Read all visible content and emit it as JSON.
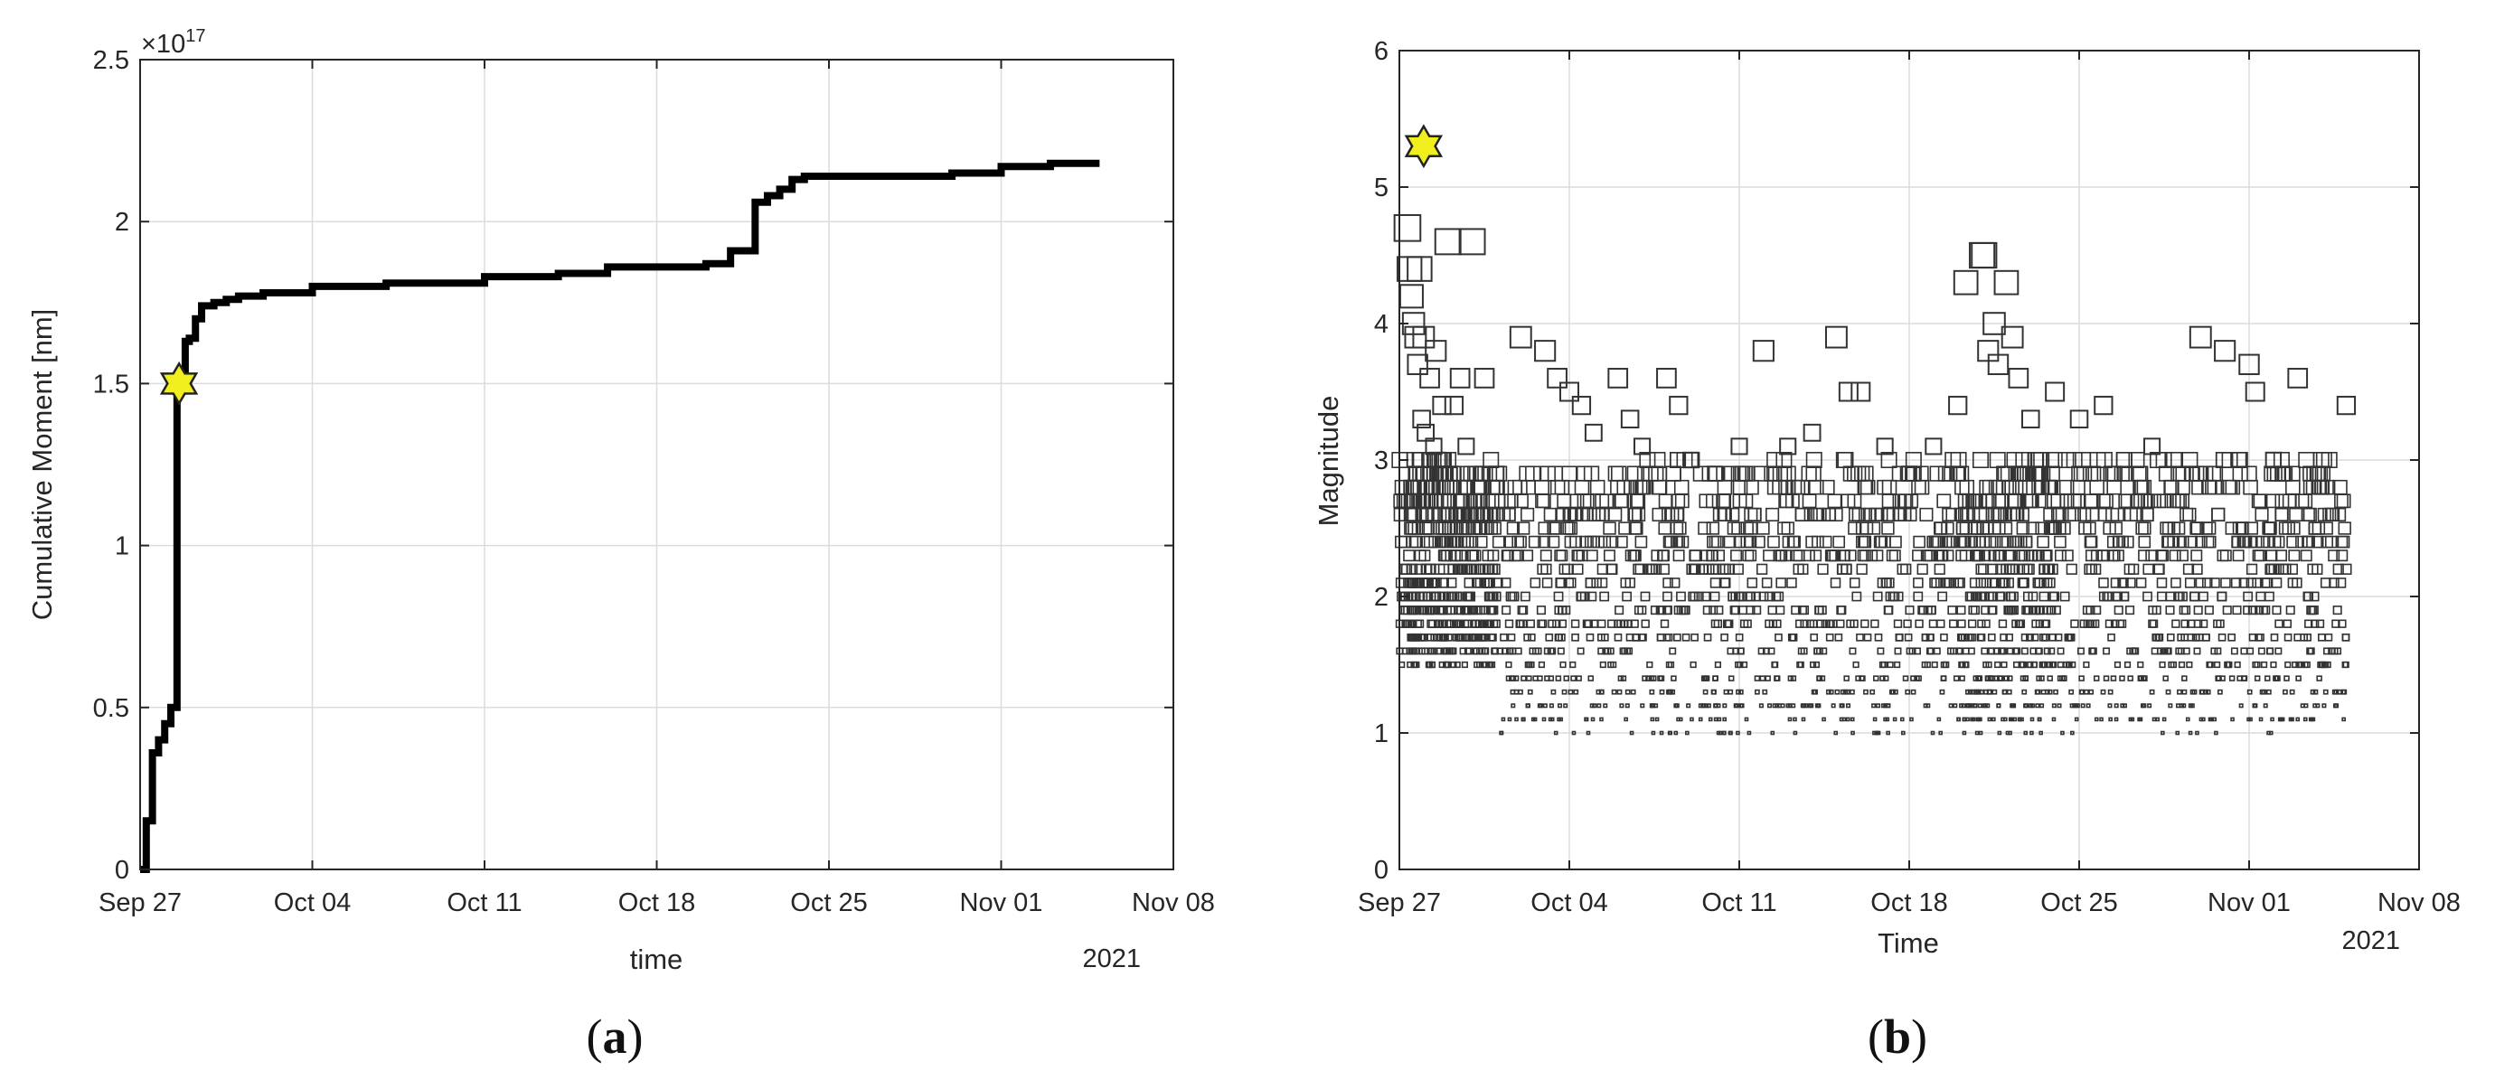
{
  "chart_data": [
    {
      "panel_label": "a",
      "type": "line",
      "xlabel": "time",
      "ylabel": "Cumulative Moment [nm]",
      "y_multiplier": "×10",
      "y_multiplier_exp": "17",
      "year_label": "2021",
      "x_ticks": [
        {
          "date": "2021-09-27",
          "label": "Sep 27"
        },
        {
          "date": "2021-10-04",
          "label": "Oct 04"
        },
        {
          "date": "2021-10-11",
          "label": "Oct 11"
        },
        {
          "date": "2021-10-18",
          "label": "Oct 18"
        },
        {
          "date": "2021-10-25",
          "label": "Oct 25"
        },
        {
          "date": "2021-11-01",
          "label": "Nov 01"
        },
        {
          "date": "2021-11-08",
          "label": "Nov 08"
        }
      ],
      "y_ticks": [
        {
          "value": 0,
          "label": "0"
        },
        {
          "value": 0.5,
          "label": "0.5"
        },
        {
          "value": 1,
          "label": "1"
        },
        {
          "value": 1.5,
          "label": "1.5"
        },
        {
          "value": 2,
          "label": "2"
        },
        {
          "value": 2.5,
          "label": "2.5"
        }
      ],
      "xlim": [
        "2021-09-27",
        "2021-11-08"
      ],
      "ylim": [
        0,
        2.5
      ],
      "grid": true,
      "line_color": "#000000",
      "series": [
        {
          "x": [
            "2021-09-27",
            "2021-09-27T06",
            "2021-09-27T12",
            "2021-09-27T18",
            "2021-09-28",
            "2021-09-28T06",
            "2021-09-28T12",
            "2021-09-28T14",
            "2021-09-28T20",
            "2021-09-29",
            "2021-09-29T06",
            "2021-09-29T12",
            "2021-09-30",
            "2021-09-30T12",
            "2021-10-01",
            "2021-10-02",
            "2021-10-04",
            "2021-10-07",
            "2021-10-11",
            "2021-10-14",
            "2021-10-16",
            "2021-10-18",
            "2021-10-20",
            "2021-10-21",
            "2021-10-21T12",
            "2021-10-22",
            "2021-10-22T12",
            "2021-10-23",
            "2021-10-23T12",
            "2021-10-24",
            "2021-10-27",
            "2021-10-30",
            "2021-11-01",
            "2021-11-03",
            "2021-11-05"
          ],
          "y": [
            0.0,
            0.15,
            0.36,
            0.4,
            0.45,
            0.5,
            1.5,
            1.5,
            1.63,
            1.64,
            1.7,
            1.74,
            1.75,
            1.76,
            1.77,
            1.78,
            1.8,
            1.81,
            1.83,
            1.84,
            1.86,
            1.86,
            1.87,
            1.91,
            1.91,
            2.06,
            2.08,
            2.1,
            2.13,
            2.14,
            2.14,
            2.15,
            2.17,
            2.18,
            2.18
          ]
        }
      ],
      "star": {
        "date": "2021-09-28T14",
        "value": 1.5,
        "color": "#f0ee1d"
      }
    },
    {
      "panel_label": "b",
      "type": "scatter",
      "xlabel": "Time",
      "ylabel": "Magnitude",
      "year_label": "2021",
      "x_ticks": [
        {
          "date": "2021-09-27",
          "label": "Sep 27"
        },
        {
          "date": "2021-10-04",
          "label": "Oct 04"
        },
        {
          "date": "2021-10-11",
          "label": "Oct 11"
        },
        {
          "date": "2021-10-18",
          "label": "Oct 18"
        },
        {
          "date": "2021-10-25",
          "label": "Oct 25"
        },
        {
          "date": "2021-11-01",
          "label": "Nov 01"
        },
        {
          "date": "2021-11-08",
          "label": "Nov 08"
        }
      ],
      "y_ticks": [
        {
          "value": 0,
          "label": "0"
        },
        {
          "value": 1,
          "label": "1"
        },
        {
          "value": 2,
          "label": "2"
        },
        {
          "value": 3,
          "label": "3"
        },
        {
          "value": 4,
          "label": "4"
        },
        {
          "value": 5,
          "label": "5"
        },
        {
          "value": 6,
          "label": "6"
        }
      ],
      "xlim": [
        "2021-09-27",
        "2021-11-08"
      ],
      "ylim": [
        0,
        6
      ],
      "grid": true,
      "marker": "square-open",
      "marker_size_encodes": "magnitude",
      "points": [
        {
          "date": "2021-09-27T08",
          "mag": 4.7
        },
        {
          "date": "2021-09-27T10",
          "mag": 4.4
        },
        {
          "date": "2021-09-27T20",
          "mag": 4.4
        },
        {
          "date": "2021-09-29",
          "mag": 4.6
        },
        {
          "date": "2021-09-30",
          "mag": 4.6
        },
        {
          "date": "2021-09-27T12",
          "mag": 4.2
        },
        {
          "date": "2021-09-27T14",
          "mag": 4.0
        },
        {
          "date": "2021-09-27T16",
          "mag": 3.9
        },
        {
          "date": "2021-09-28",
          "mag": 3.9
        },
        {
          "date": "2021-09-28T12",
          "mag": 3.8
        },
        {
          "date": "2021-09-27T18",
          "mag": 3.7
        },
        {
          "date": "2021-09-28T06",
          "mag": 3.6
        },
        {
          "date": "2021-09-29T12",
          "mag": 3.6
        },
        {
          "date": "2021-09-30T12",
          "mag": 3.6
        },
        {
          "date": "2021-09-28T18",
          "mag": 3.4
        },
        {
          "date": "2021-09-29T06",
          "mag": 3.4
        },
        {
          "date": "2021-09-27T22",
          "mag": 3.3
        },
        {
          "date": "2021-09-28T02",
          "mag": 3.2
        },
        {
          "date": "2021-09-28T10",
          "mag": 3.1
        },
        {
          "date": "2021-09-29T18",
          "mag": 3.1
        },
        {
          "date": "2021-09-28T14",
          "mag": 3.0
        },
        {
          "date": "2021-09-28T20",
          "mag": 2.9
        },
        {
          "date": "2021-09-29T02",
          "mag": 2.9
        },
        {
          "date": "2021-09-30T06",
          "mag": 2.8
        },
        {
          "date": "2021-10-01",
          "mag": 2.9
        },
        {
          "date": "2021-10-02",
          "mag": 3.9
        },
        {
          "date": "2021-10-03",
          "mag": 3.8
        },
        {
          "date": "2021-10-03T12",
          "mag": 3.6
        },
        {
          "date": "2021-10-04",
          "mag": 3.5
        },
        {
          "date": "2021-10-04T12",
          "mag": 3.4
        },
        {
          "date": "2021-10-05",
          "mag": 3.2
        },
        {
          "date": "2021-10-06",
          "mag": 3.6
        },
        {
          "date": "2021-10-06T12",
          "mag": 3.3
        },
        {
          "date": "2021-10-07",
          "mag": 3.1
        },
        {
          "date": "2021-10-08",
          "mag": 3.6
        },
        {
          "date": "2021-10-08T12",
          "mag": 3.4
        },
        {
          "date": "2021-10-09",
          "mag": 3.0
        },
        {
          "date": "2021-10-10",
          "mag": 2.9
        },
        {
          "date": "2021-10-11",
          "mag": 3.1
        },
        {
          "date": "2021-10-12",
          "mag": 3.8
        },
        {
          "date": "2021-10-13",
          "mag": 3.1
        },
        {
          "date": "2021-10-14",
          "mag": 3.2
        },
        {
          "date": "2021-10-15",
          "mag": 3.9
        },
        {
          "date": "2021-10-15T12",
          "mag": 3.5
        },
        {
          "date": "2021-10-16",
          "mag": 3.5
        },
        {
          "date": "2021-10-17",
          "mag": 3.1
        },
        {
          "date": "2021-10-18",
          "mag": 2.9
        },
        {
          "date": "2021-10-19",
          "mag": 3.1
        },
        {
          "date": "2021-10-20",
          "mag": 3.4
        },
        {
          "date": "2021-10-20T08",
          "mag": 4.3
        },
        {
          "date": "2021-10-21",
          "mag": 4.5
        },
        {
          "date": "2021-10-21T02",
          "mag": 4.5
        },
        {
          "date": "2021-10-21T06",
          "mag": 3.8
        },
        {
          "date": "2021-10-21T12",
          "mag": 4.0
        },
        {
          "date": "2021-10-21T16",
          "mag": 3.7
        },
        {
          "date": "2021-10-22",
          "mag": 4.3
        },
        {
          "date": "2021-10-22T06",
          "mag": 3.9
        },
        {
          "date": "2021-10-22T12",
          "mag": 3.6
        },
        {
          "date": "2021-10-23",
          "mag": 3.3
        },
        {
          "date": "2021-10-24",
          "mag": 3.5
        },
        {
          "date": "2021-10-25",
          "mag": 3.3
        },
        {
          "date": "2021-10-26",
          "mag": 3.4
        },
        {
          "date": "2021-10-28",
          "mag": 3.1
        },
        {
          "date": "2021-10-30",
          "mag": 3.9
        },
        {
          "date": "2021-10-31",
          "mag": 3.8
        },
        {
          "date": "2021-11-01",
          "mag": 3.7
        },
        {
          "date": "2021-11-01T06",
          "mag": 3.5
        },
        {
          "date": "2021-11-02",
          "mag": 3.0
        },
        {
          "date": "2021-11-03",
          "mag": 3.6
        },
        {
          "date": "2021-11-05",
          "mag": 3.4
        },
        {
          "date": "2021-11-04",
          "mag": 2.8
        }
      ],
      "cloud": {
        "mag_min": 1.0,
        "mag_max": 3.0,
        "mag_step": 0.1,
        "n": 2500
      },
      "star": {
        "date": "2021-09-28",
        "mag": 5.3,
        "color": "#f0ee1d"
      }
    }
  ]
}
